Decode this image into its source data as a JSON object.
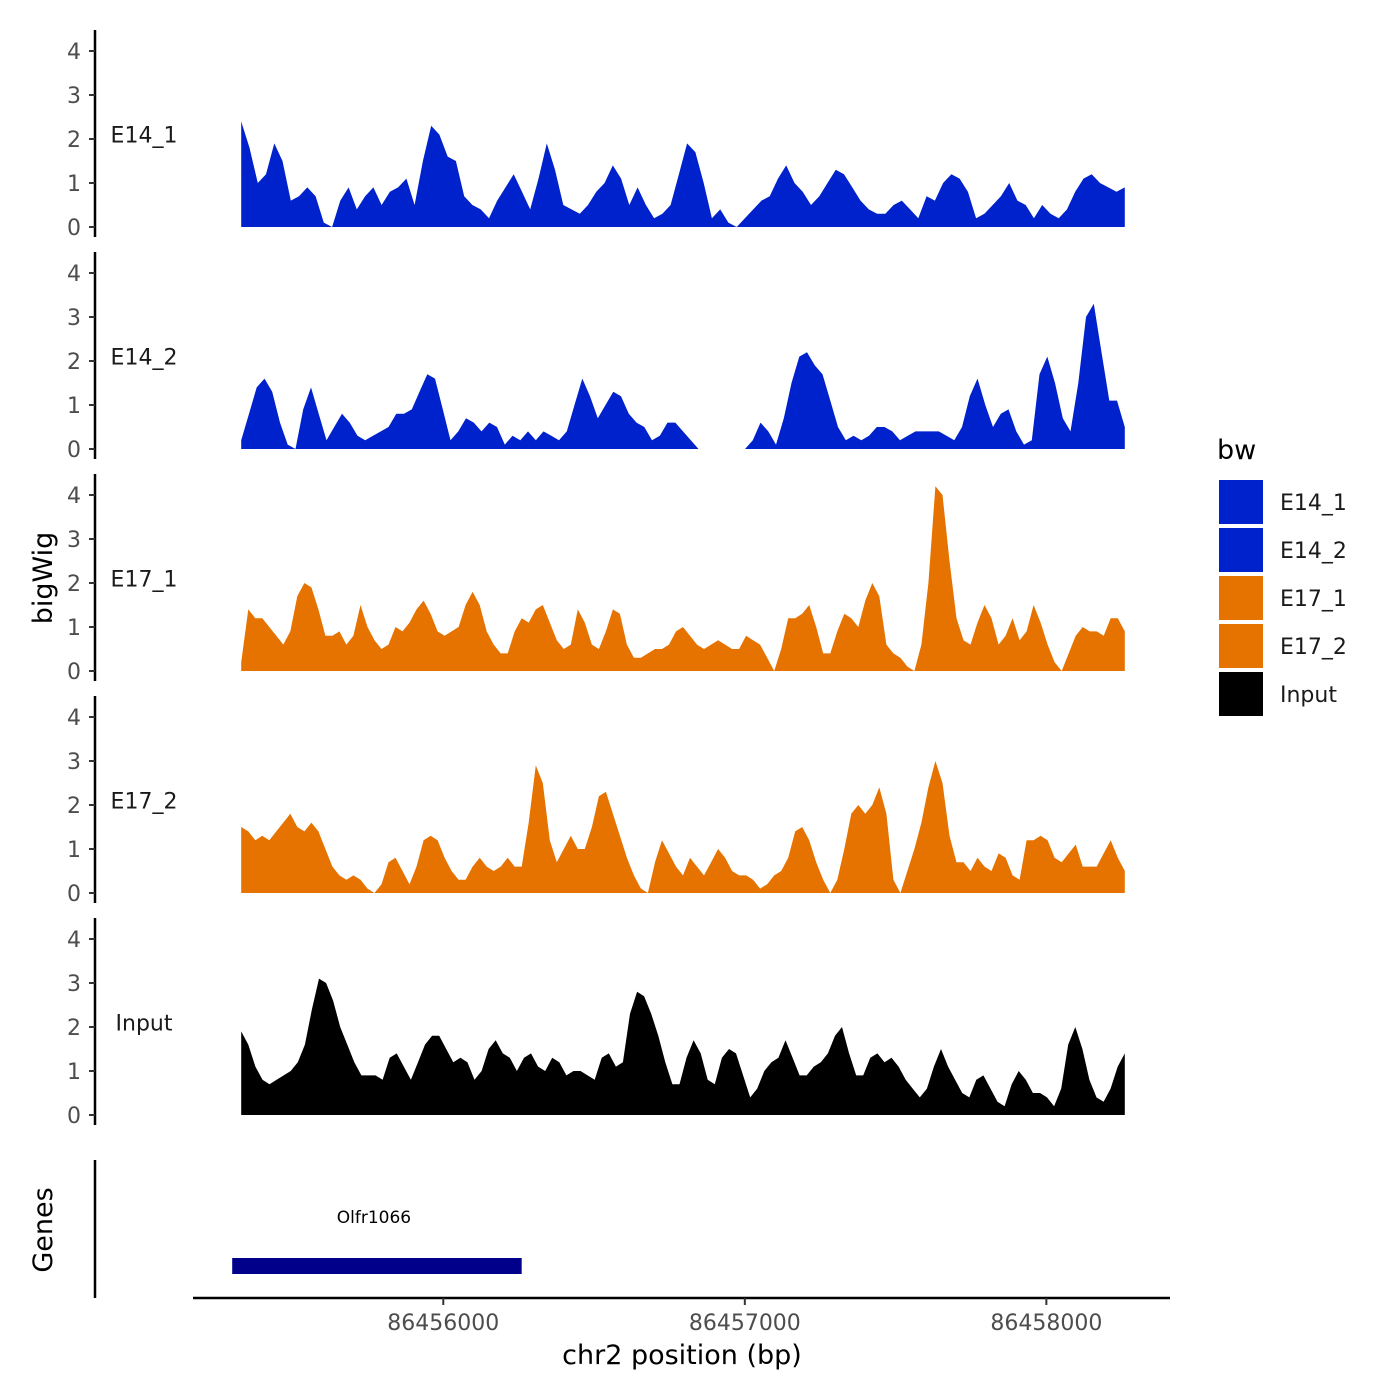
{
  "chart_data": {
    "type": "area",
    "title": "",
    "ylabel": "bigWig",
    "xlabel": "chr2 position (bp)",
    "x_ticks": [
      86456000,
      86457000,
      86458000
    ],
    "x_tick_labels": [
      "86456000",
      "86457000",
      "86458000"
    ],
    "xlim": [
      86455170,
      86458410
    ],
    "x_range": [
      86455330,
      86458260
    ],
    "ylim": [
      0,
      4.4
    ],
    "y_ticks": [
      0,
      1,
      2,
      3,
      4
    ],
    "y_tick_labels": [
      "0",
      "1",
      "2",
      "3",
      "4"
    ],
    "legend_title": "bw",
    "legend_position": "right",
    "series": [
      {
        "name": "E14_1",
        "color": "#0022cc",
        "values": [
          2.4,
          1.8,
          1.0,
          1.2,
          1.9,
          1.5,
          0.6,
          0.7,
          0.9,
          0.7,
          0.1,
          0.0,
          0.6,
          0.9,
          0.4,
          0.7,
          0.9,
          0.5,
          0.8,
          0.9,
          1.1,
          0.5,
          1.5,
          2.3,
          2.1,
          1.6,
          1.5,
          0.7,
          0.5,
          0.4,
          0.2,
          0.6,
          0.9,
          1.2,
          0.8,
          0.4,
          1.1,
          1.9,
          1.3,
          0.5,
          0.4,
          0.3,
          0.5,
          0.8,
          1.0,
          1.4,
          1.1,
          0.5,
          0.9,
          0.5,
          0.2,
          0.3,
          0.5,
          1.2,
          1.9,
          1.7,
          1.0,
          0.2,
          0.4,
          0.1,
          0.0,
          0.2,
          0.4,
          0.6,
          0.7,
          1.1,
          1.4,
          1.0,
          0.8,
          0.5,
          0.7,
          1.0,
          1.3,
          1.2,
          0.9,
          0.6,
          0.4,
          0.3,
          0.3,
          0.5,
          0.6,
          0.4,
          0.2,
          0.7,
          0.6,
          1.0,
          1.2,
          1.1,
          0.8,
          0.2,
          0.3,
          0.5,
          0.7,
          1.0,
          0.6,
          0.5,
          0.2,
          0.5,
          0.3,
          0.2,
          0.4,
          0.8,
          1.1,
          1.2,
          1.0,
          0.9,
          0.8,
          0.9
        ]
      },
      {
        "name": "E14_2",
        "color": "#0022cc",
        "values": [
          0.2,
          0.8,
          1.4,
          1.6,
          1.3,
          0.6,
          0.1,
          0.0,
          0.9,
          1.4,
          0.8,
          0.2,
          0.5,
          0.8,
          0.6,
          0.3,
          0.2,
          0.3,
          0.4,
          0.5,
          0.8,
          0.8,
          0.9,
          1.3,
          1.7,
          1.6,
          0.9,
          0.2,
          0.4,
          0.7,
          0.6,
          0.4,
          0.6,
          0.5,
          0.1,
          0.3,
          0.2,
          0.4,
          0.2,
          0.4,
          0.3,
          0.2,
          0.4,
          1.0,
          1.6,
          1.2,
          0.7,
          1.0,
          1.3,
          1.2,
          0.8,
          0.6,
          0.5,
          0.2,
          0.3,
          0.6,
          0.6,
          0.4,
          0.2,
          0.0,
          0.0,
          0.0,
          0.0,
          0.0,
          0.0,
          0.0,
          0.2,
          0.6,
          0.4,
          0.1,
          0.7,
          1.5,
          2.1,
          2.2,
          1.9,
          1.7,
          1.1,
          0.5,
          0.2,
          0.3,
          0.2,
          0.3,
          0.5,
          0.5,
          0.4,
          0.2,
          0.3,
          0.4,
          0.4,
          0.4,
          0.4,
          0.3,
          0.2,
          0.5,
          1.2,
          1.6,
          1.0,
          0.5,
          0.8,
          0.9,
          0.4,
          0.1,
          0.2,
          1.7,
          2.1,
          1.5,
          0.7,
          0.4,
          1.5,
          3.0,
          3.3,
          2.2,
          1.1,
          1.1,
          0.5
        ]
      },
      {
        "name": "E17_1",
        "color": "#e67300",
        "values": [
          0.2,
          1.4,
          1.2,
          1.2,
          1.0,
          0.8,
          0.6,
          0.9,
          1.7,
          2.0,
          1.9,
          1.4,
          0.8,
          0.8,
          0.9,
          0.6,
          0.8,
          1.5,
          1.0,
          0.7,
          0.5,
          0.6,
          1.0,
          0.9,
          1.1,
          1.4,
          1.6,
          1.3,
          0.9,
          0.8,
          0.9,
          1.0,
          1.5,
          1.8,
          1.5,
          0.9,
          0.6,
          0.4,
          0.4,
          0.9,
          1.2,
          1.1,
          1.4,
          1.5,
          1.1,
          0.7,
          0.5,
          0.6,
          1.4,
          1.1,
          0.6,
          0.5,
          0.9,
          1.4,
          1.3,
          0.6,
          0.3,
          0.3,
          0.4,
          0.5,
          0.5,
          0.6,
          0.9,
          1.0,
          0.8,
          0.6,
          0.5,
          0.6,
          0.7,
          0.6,
          0.5,
          0.5,
          0.8,
          0.7,
          0.6,
          0.3,
          0.0,
          0.5,
          1.2,
          1.2,
          1.3,
          1.5,
          1.0,
          0.4,
          0.4,
          0.9,
          1.3,
          1.2,
          1.0,
          1.6,
          2.0,
          1.7,
          0.6,
          0.4,
          0.3,
          0.1,
          0.0,
          0.6,
          2.0,
          4.2,
          4.0,
          2.5,
          1.2,
          0.7,
          0.6,
          1.1,
          1.5,
          1.2,
          0.6,
          0.8,
          1.2,
          0.7,
          0.9,
          1.5,
          1.1,
          0.6,
          0.2,
          0.0,
          0.4,
          0.8,
          1.0,
          0.9,
          0.9,
          0.8,
          1.2,
          1.2,
          0.9
        ]
      },
      {
        "name": "E17_2",
        "color": "#e67300",
        "values": [
          1.5,
          1.4,
          1.2,
          1.3,
          1.2,
          1.4,
          1.6,
          1.8,
          1.5,
          1.4,
          1.6,
          1.4,
          1.0,
          0.6,
          0.4,
          0.3,
          0.4,
          0.3,
          0.1,
          0.0,
          0.2,
          0.7,
          0.8,
          0.5,
          0.2,
          0.6,
          1.2,
          1.3,
          1.2,
          0.8,
          0.5,
          0.3,
          0.3,
          0.6,
          0.8,
          0.6,
          0.5,
          0.6,
          0.8,
          0.6,
          0.6,
          1.6,
          2.9,
          2.5,
          1.2,
          0.7,
          1.0,
          1.3,
          1.0,
          1.0,
          1.5,
          2.2,
          2.3,
          1.8,
          1.3,
          0.8,
          0.4,
          0.1,
          0.0,
          0.7,
          1.2,
          0.9,
          0.6,
          0.4,
          0.8,
          0.6,
          0.4,
          0.7,
          1.0,
          0.8,
          0.5,
          0.4,
          0.4,
          0.3,
          0.1,
          0.2,
          0.4,
          0.5,
          0.8,
          1.4,
          1.5,
          1.2,
          0.7,
          0.3,
          0.0,
          0.3,
          1.0,
          1.8,
          2.0,
          1.8,
          2.0,
          2.4,
          1.8,
          0.3,
          0.0,
          0.5,
          1.0,
          1.6,
          2.4,
          3.0,
          2.5,
          1.3,
          0.7,
          0.7,
          0.5,
          0.8,
          0.6,
          0.5,
          0.9,
          0.8,
          0.4,
          0.3,
          1.2,
          1.2,
          1.3,
          1.2,
          0.8,
          0.7,
          0.9,
          1.1,
          0.6,
          0.6,
          0.6,
          0.9,
          1.2,
          0.8,
          0.5
        ]
      },
      {
        "name": "Input",
        "color": "#000000",
        "values": [
          1.9,
          1.6,
          1.1,
          0.8,
          0.7,
          0.8,
          0.9,
          1.0,
          1.2,
          1.6,
          2.4,
          3.1,
          3.0,
          2.6,
          2.0,
          1.6,
          1.2,
          0.9,
          0.9,
          0.9,
          0.8,
          1.3,
          1.4,
          1.1,
          0.8,
          1.2,
          1.6,
          1.8,
          1.8,
          1.5,
          1.2,
          1.3,
          1.2,
          0.8,
          1.0,
          1.5,
          1.7,
          1.4,
          1.3,
          1.0,
          1.3,
          1.4,
          1.1,
          1.0,
          1.3,
          1.2,
          0.9,
          1.0,
          1.0,
          0.9,
          0.8,
          1.3,
          1.4,
          1.1,
          1.2,
          2.3,
          2.8,
          2.7,
          2.3,
          1.8,
          1.2,
          0.7,
          0.7,
          1.3,
          1.7,
          1.4,
          0.8,
          0.7,
          1.3,
          1.5,
          1.4,
          0.9,
          0.4,
          0.6,
          1.0,
          1.2,
          1.3,
          1.7,
          1.3,
          0.9,
          0.9,
          1.1,
          1.2,
          1.4,
          1.8,
          2.0,
          1.4,
          0.9,
          0.9,
          1.3,
          1.4,
          1.2,
          1.3,
          1.1,
          0.8,
          0.6,
          0.4,
          0.6,
          1.1,
          1.5,
          1.1,
          0.8,
          0.5,
          0.4,
          0.8,
          0.9,
          0.6,
          0.3,
          0.2,
          0.7,
          1.0,
          0.8,
          0.5,
          0.5,
          0.4,
          0.2,
          0.6,
          1.6,
          2.0,
          1.5,
          0.8,
          0.4,
          0.3,
          0.6,
          1.1,
          1.4
        ]
      }
    ],
    "genes": [
      {
        "name": "Olfr1066",
        "start": 86455300,
        "end": 86456260,
        "color": "#00008b"
      }
    ]
  }
}
